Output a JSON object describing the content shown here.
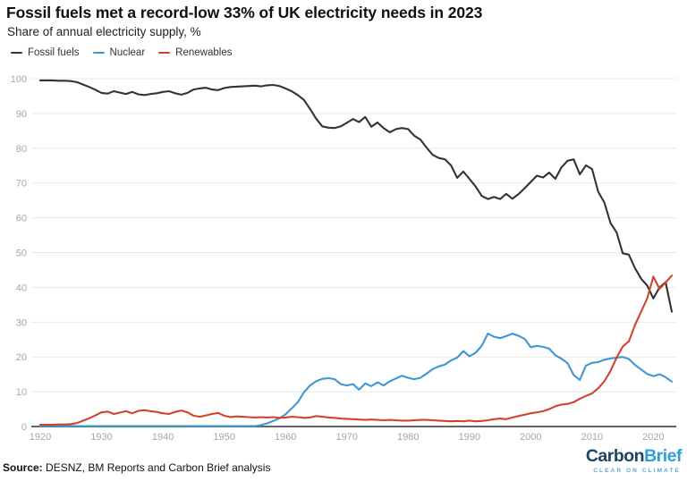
{
  "header": {
    "title": "Fossil fuels met a record-low 33% of UK electricity needs in 2023",
    "subtitle": "Share of annual electricity supply, %"
  },
  "footer": {
    "source_label": "Source:",
    "source_text": " DESNZ, BM Reports and Carbon Brief analysis",
    "logo": {
      "part1": "Carbon",
      "part2": "Brief",
      "tagline": "CLEAR ON CLIMATE"
    }
  },
  "chart_data": {
    "type": "line",
    "title": "Fossil fuels met a record-low 33% of UK electricity needs in 2023",
    "subtitle": "Share of annual electricity supply, %",
    "xlim": [
      1920,
      2023
    ],
    "ylim": [
      0,
      100
    ],
    "x_step": 1,
    "x_ticks": [
      1920,
      1930,
      1940,
      1950,
      1960,
      1970,
      1980,
      1990,
      2000,
      2010,
      2020
    ],
    "y_ticks": [
      0,
      10,
      20,
      30,
      40,
      50,
      60,
      70,
      80,
      90,
      100
    ],
    "grid": true,
    "grid_color": "#e9e9e9",
    "axis_color": "#646464",
    "tick_label_color": "#a6a6a6",
    "legend_position": "top-left",
    "series": [
      {
        "name": "Fossil fuels",
        "color": "#333333",
        "values": [
          99.5,
          99.5,
          99.5,
          99.4,
          99.4,
          99.3,
          99.0,
          98.3,
          97.6,
          96.8,
          95.9,
          95.7,
          96.4,
          96.0,
          95.6,
          96.2,
          95.5,
          95.3,
          95.6,
          95.8,
          96.2,
          96.4,
          95.8,
          95.4,
          95.9,
          96.9,
          97.2,
          97.4,
          96.9,
          96.7,
          97.3,
          97.6,
          97.7,
          97.8,
          97.9,
          98.0,
          97.8,
          98.1,
          98.2,
          97.9,
          97.2,
          96.4,
          95.3,
          93.9,
          91.3,
          88.5,
          86.3,
          85.9,
          85.8,
          86.3,
          87.3,
          88.4,
          87.5,
          89.0,
          86.2,
          87.4,
          85.8,
          84.6,
          85.5,
          85.8,
          85.5,
          83.6,
          82.5,
          80.2,
          78.1,
          77.2,
          76.8,
          75.1,
          71.5,
          73.3,
          71.2,
          69.0,
          66.3,
          65.4,
          66.0,
          65.4,
          66.9,
          65.5,
          66.8,
          68.5,
          70.3,
          72.1,
          71.6,
          73.0,
          71.2,
          74.5,
          76.4,
          76.8,
          72.5,
          75.1,
          74.0,
          67.5,
          64.4,
          58.5,
          55.8,
          49.8,
          49.4,
          45.5,
          42.5,
          40.5,
          36.8,
          40.0,
          41.5,
          33.0
        ]
      },
      {
        "name": "Nuclear",
        "color": "#3e96d2",
        "values": [
          0.1,
          0.1,
          0.1,
          0.1,
          0.1,
          0.1,
          0.1,
          0.1,
          0.1,
          0.1,
          0.1,
          0.1,
          0.1,
          0.1,
          0.1,
          0.1,
          0.1,
          0.1,
          0.1,
          0.1,
          0.1,
          0.1,
          0.1,
          0.1,
          0.1,
          0.1,
          0.1,
          0.1,
          0.1,
          0.1,
          0.1,
          0.1,
          0.1,
          0.1,
          0.1,
          0.1,
          0.4,
          0.9,
          1.6,
          2.4,
          3.5,
          5.2,
          7.0,
          9.8,
          11.8,
          13.0,
          13.7,
          13.9,
          13.6,
          12.2,
          11.8,
          12.2,
          10.6,
          12.4,
          11.6,
          12.7,
          11.8,
          13.0,
          13.8,
          14.6,
          14.0,
          13.6,
          14.0,
          15.2,
          16.5,
          17.3,
          17.8,
          19.0,
          19.8,
          21.7,
          20.2,
          21.2,
          23.2,
          26.7,
          25.8,
          25.4,
          26.0,
          26.7,
          26.1,
          25.2,
          22.8,
          23.2,
          22.9,
          22.4,
          20.5,
          19.5,
          18.2,
          14.8,
          13.4,
          17.5,
          18.3,
          18.5,
          19.2,
          19.6,
          19.8,
          20.0,
          19.4,
          17.7,
          16.4,
          15.1,
          14.5,
          15.0,
          14.2,
          12.9
        ]
      },
      {
        "name": "Renewables",
        "color": "#d14330",
        "values": [
          0.5,
          0.5,
          0.5,
          0.6,
          0.6,
          0.7,
          1.0,
          1.7,
          2.4,
          3.2,
          4.1,
          4.3,
          3.6,
          4.0,
          4.4,
          3.8,
          4.5,
          4.7,
          4.4,
          4.2,
          3.8,
          3.6,
          4.2,
          4.6,
          4.1,
          3.1,
          2.8,
          3.2,
          3.6,
          3.9,
          3.1,
          2.7,
          2.9,
          2.8,
          2.7,
          2.6,
          2.7,
          2.6,
          2.7,
          2.5,
          2.6,
          2.8,
          2.7,
          2.5,
          2.6,
          3.0,
          2.8,
          2.6,
          2.5,
          2.3,
          2.2,
          2.1,
          2.0,
          1.9,
          2.0,
          1.9,
          1.8,
          1.9,
          1.8,
          1.7,
          1.7,
          1.8,
          1.9,
          1.9,
          1.8,
          1.7,
          1.6,
          1.5,
          1.6,
          1.5,
          1.7,
          1.5,
          1.6,
          1.8,
          2.1,
          2.3,
          2.1,
          2.6,
          3.0,
          3.4,
          3.8,
          4.1,
          4.4,
          5.0,
          5.8,
          6.3,
          6.5,
          7.0,
          8.0,
          8.8,
          9.5,
          11.0,
          13.0,
          16.0,
          19.8,
          23.0,
          24.5,
          29.2,
          33.0,
          36.9,
          43.1,
          39.6,
          41.4,
          43.4
        ]
      }
    ]
  }
}
